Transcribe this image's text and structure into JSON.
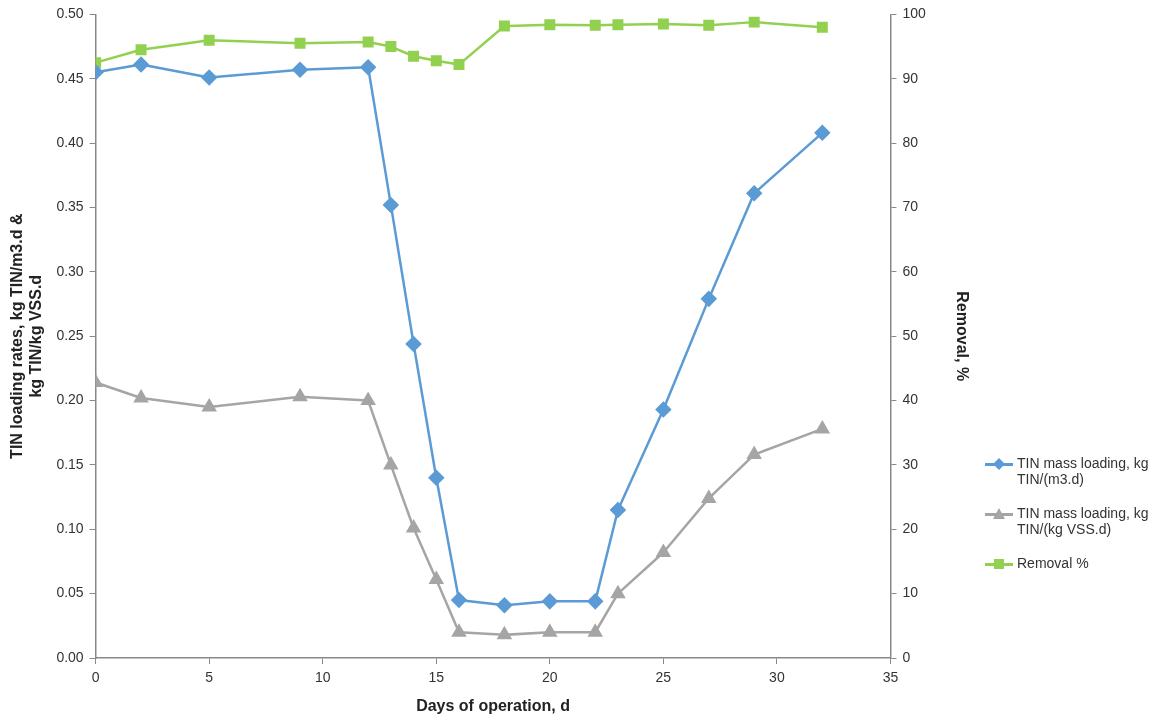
{
  "chart_data": {
    "type": "line",
    "xlabel": "Days of operation, d",
    "ylabel": "TIN loading rates, kg TIN/m3.d & kg TIN/kg VSS.d",
    "y2label": "Removal, %",
    "x": [
      0,
      2,
      5,
      9,
      12,
      13,
      14,
      15,
      16,
      18,
      20,
      22,
      23,
      25,
      27,
      29,
      32
    ],
    "series": [
      {
        "name": "TIN mass loading, kg TIN/(m3.d)",
        "color": "#5b9bd5",
        "marker": "diamond",
        "values": [
          0.455,
          0.461,
          0.451,
          0.457,
          0.459,
          0.352,
          0.244,
          0.14,
          0.045,
          0.041,
          0.044,
          0.044,
          0.115,
          0.193,
          0.279,
          0.361,
          0.408
        ]
      },
      {
        "name": "TIN mass loading, kg TIN/(kg VSS.d)",
        "color": "#a5a5a5",
        "marker": "triangle",
        "values": [
          0.214,
          0.202,
          0.195,
          0.203,
          0.2,
          0.15,
          0.101,
          0.061,
          0.02,
          0.018,
          0.02,
          0.02,
          0.05,
          0.082,
          0.124,
          0.158,
          0.178
        ]
      },
      {
        "name": "Removal %",
        "color": "#92d050",
        "marker": "square",
        "axis": "y2",
        "values": [
          92.5,
          94.5,
          96.0,
          95.5,
          95.7,
          95.0,
          93.5,
          92.8,
          92.2,
          98.2,
          98.4,
          98.3,
          98.4,
          98.5,
          98.3,
          98.8,
          98.0
        ]
      }
    ],
    "xlim": [
      0,
      35
    ],
    "xticks": [
      0,
      5,
      10,
      15,
      20,
      25,
      30,
      35
    ],
    "ylim": [
      0,
      0.5
    ],
    "yticks": [
      {
        "value": 0,
        "label": "0.00"
      },
      {
        "value": 0.05,
        "label": "0.05"
      },
      {
        "value": 0.1,
        "label": "0.10"
      },
      {
        "value": 0.15,
        "label": "0.15"
      },
      {
        "value": 0.2,
        "label": "0.20"
      },
      {
        "value": 0.25,
        "label": "0.25"
      },
      {
        "value": 0.3,
        "label": "0.30"
      },
      {
        "value": 0.35,
        "label": "0.35"
      },
      {
        "value": 0.4,
        "label": "0.40"
      },
      {
        "value": 0.45,
        "label": "0.45"
      },
      {
        "value": 0.5,
        "label": "0.50"
      }
    ],
    "y2lim": [
      0,
      100
    ],
    "y2ticks": [
      0,
      10,
      20,
      30,
      40,
      50,
      60,
      70,
      80,
      90,
      100
    ],
    "grid": false,
    "legend": "right"
  }
}
